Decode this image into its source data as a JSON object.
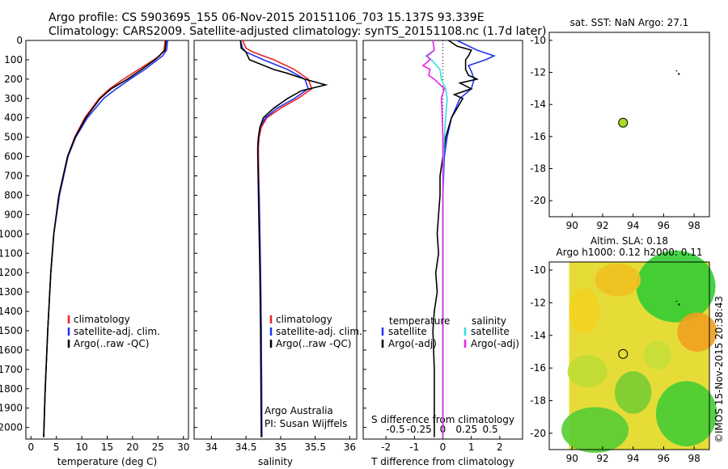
{
  "title": {
    "line1": "Argo profile: CS 5903695_155 06-Nov-2015 20151106_703 15.137S 93.339E",
    "line2": "Climatology: CARS2009. Satellite-adjusted climatology: synTS_20151108.nc (1.7d later)"
  },
  "colors": {
    "climatology": "#ee2222",
    "satellite": "#2233ee",
    "argo": "#000000",
    "sat_salinity": "#33dddd",
    "argo_salinity": "#ee22ee",
    "dot": "#aadd22"
  },
  "chart_data": [
    {
      "type": "line",
      "id": "temperature",
      "xlabel": "temperature (deg C)",
      "xlim": [
        -1,
        31
      ],
      "ylim": [
        2060,
        0
      ],
      "xticks": [
        0,
        5,
        10,
        15,
        20,
        25,
        30
      ],
      "yticks": [
        0,
        100,
        200,
        300,
        400,
        500,
        600,
        700,
        800,
        900,
        1000,
        1100,
        1200,
        1300,
        1400,
        1500,
        1600,
        1700,
        1800,
        1900,
        2000
      ],
      "legend": [
        "climatology",
        "satellite-adj. clim.",
        "Argo(..raw -QC)"
      ],
      "series": [
        {
          "name": "climatology",
          "depth": [
            0,
            50,
            80,
            100,
            150,
            200,
            250,
            300,
            400,
            500,
            600,
            800,
            1000,
            1200,
            1500,
            1800,
            2050
          ],
          "values": [
            26.4,
            26.2,
            25.3,
            24.2,
            21.2,
            18.2,
            15.5,
            13.4,
            10.6,
            8.6,
            7.2,
            5.5,
            4.5,
            3.9,
            3.3,
            2.8,
            2.5
          ]
        },
        {
          "name": "satellite-adj. clim.",
          "depth": [
            0,
            50,
            80,
            100,
            150,
            200,
            250,
            300,
            400,
            500,
            600,
            800,
            1000,
            1200,
            1500,
            1800,
            2050
          ],
          "values": [
            26.9,
            26.7,
            25.9,
            24.9,
            22.4,
            19.5,
            16.8,
            14.3,
            11.1,
            8.8,
            7.3,
            5.6,
            4.5,
            3.9,
            3.3,
            2.8,
            2.5
          ]
        },
        {
          "name": "Argo(..raw -QC)",
          "depth": [
            0,
            50,
            70,
            100,
            150,
            200,
            250,
            300,
            400,
            500,
            600,
            800,
            1000,
            1200,
            1500,
            1800,
            2050
          ],
          "values": [
            26.6,
            26.4,
            25.6,
            24.4,
            21.8,
            19.0,
            15.8,
            13.6,
            10.8,
            8.7,
            7.2,
            5.5,
            4.5,
            3.9,
            3.3,
            2.8,
            2.5
          ]
        }
      ]
    },
    {
      "type": "line",
      "id": "salinity",
      "xlabel": "salinity",
      "xlim": [
        33.75,
        36.1
      ],
      "ylim": [
        2060,
        0
      ],
      "xticks": [
        34,
        34.5,
        35,
        35.5,
        36
      ],
      "legend": [
        "climatology",
        "satellite-adj. clim.",
        "Argo(..raw -QC)"
      ],
      "series": [
        {
          "name": "climatology",
          "depth": [
            0,
            40,
            60,
            100,
            150,
            200,
            250,
            300,
            350,
            400,
            450,
            500,
            550,
            600,
            800,
            1000,
            1200,
            1500,
            2050
          ],
          "values": [
            34.45,
            34.5,
            34.6,
            34.9,
            35.2,
            35.4,
            35.45,
            35.25,
            35.0,
            34.8,
            34.72,
            34.69,
            34.68,
            34.68,
            34.69,
            34.7,
            34.71,
            34.72,
            34.73
          ]
        },
        {
          "name": "satellite-adj. clim.",
          "depth": [
            0,
            40,
            60,
            100,
            150,
            200,
            250,
            300,
            350,
            400,
            450,
            500,
            550,
            600,
            800,
            1000,
            1200,
            1500,
            2050
          ],
          "values": [
            34.42,
            34.45,
            34.5,
            34.75,
            35.1,
            35.35,
            35.4,
            35.2,
            34.95,
            34.78,
            34.7,
            34.68,
            34.67,
            34.67,
            34.69,
            34.7,
            34.71,
            34.72,
            34.73
          ]
        },
        {
          "name": "Argo(..raw -QC)",
          "depth": [
            0,
            40,
            60,
            100,
            150,
            170,
            200,
            230,
            260,
            300,
            350,
            400,
            450,
            500,
            550,
            600,
            800,
            1000,
            1200,
            1500,
            2050
          ],
          "values": [
            34.42,
            34.43,
            34.5,
            34.55,
            34.9,
            35.1,
            35.35,
            35.65,
            35.3,
            35.1,
            34.9,
            34.75,
            34.7,
            34.68,
            34.67,
            34.67,
            34.68,
            34.69,
            34.7,
            34.71,
            34.72
          ]
        }
      ],
      "annotation": [
        "Argo Australia",
        "PI: Susan Wijffels"
      ]
    },
    {
      "type": "line",
      "id": "difference",
      "xlabel": "T difference from climatology",
      "xlabel_top": "S difference from climatology",
      "xlim": [
        -2.8,
        2.8
      ],
      "ylim": [
        2060,
        0
      ],
      "xticks": [
        -2,
        -1,
        0,
        1,
        2
      ],
      "xticks_top": [
        "-0.5",
        "-0.25",
        "0",
        "0.25",
        "0.5"
      ],
      "legend_headers": [
        "temperature",
        "salinity"
      ],
      "legend": [
        "satellite",
        "Argo(-adj)",
        "satellite",
        "Argo(-adj)"
      ],
      "series": [
        {
          "name": "temperature satellite",
          "depth": [
            0,
            50,
            80,
            100,
            130,
            160,
            200,
            250,
            300,
            400,
            500,
            600,
            800,
            1000,
            1500,
            2050
          ],
          "values": [
            0.5,
            1.2,
            1.8,
            1.5,
            0.9,
            1.0,
            1.1,
            1.0,
            0.6,
            0.3,
            0.15,
            0.05,
            0,
            0,
            0,
            0
          ]
        },
        {
          "name": "temperature Argo(-adj)",
          "depth": [
            0,
            30,
            50,
            80,
            100,
            150,
            180,
            200,
            220,
            250,
            280,
            300,
            400,
            500,
            600,
            700,
            800,
            900,
            1000,
            1100,
            1200,
            1300,
            1400,
            1500,
            1700,
            2050
          ],
          "values": [
            0.2,
            0.5,
            1.0,
            0.9,
            0.8,
            0.8,
            0.9,
            1.2,
            0.6,
            1.0,
            0.4,
            0.7,
            0.3,
            0.1,
            0,
            -0.1,
            -0.1,
            -0.15,
            -0.2,
            -0.15,
            -0.25,
            -0.2,
            -0.3,
            -0.35,
            -0.3,
            -0.3
          ]
        },
        {
          "name": "salinity satellite",
          "depth": [
            0,
            50,
            80,
            100,
            150,
            200,
            250,
            300,
            400,
            500,
            600,
            800,
            1000,
            2050
          ],
          "values": [
            -0.35,
            -0.3,
            -0.6,
            -0.4,
            -0.1,
            -0.05,
            0.1,
            0.15,
            0.1,
            0.05,
            0.02,
            0,
            0,
            0
          ]
        },
        {
          "name": "salinity Argo(-adj)",
          "depth": [
            0,
            50,
            80,
            100,
            130,
            150,
            180,
            200,
            250,
            300,
            400,
            500,
            600,
            800,
            1000,
            2050
          ],
          "values": [
            -0.35,
            -0.3,
            -0.55,
            -0.45,
            -0.7,
            -0.45,
            -0.5,
            -0.3,
            0.05,
            -0.05,
            -0.02,
            0,
            0,
            0,
            0,
            0
          ]
        }
      ]
    }
  ],
  "map_top": {
    "title": "sat. SST: NaN Argo: 27.1",
    "xticks": [
      "90",
      "92",
      "94",
      "96",
      "98"
    ],
    "yticks": [
      "-10",
      "-12",
      "-14",
      "-16",
      "-18",
      "-20"
    ],
    "xlim": [
      88.5,
      99
    ],
    "ylim": [
      -21,
      -9.5
    ],
    "float_lon": 93.339,
    "float_lat": -15.137
  },
  "map_bottom": {
    "title_line1": "Altim. SLA: 0.18",
    "title_line2": "Argo h1000: 0.12 h2000: 0.11",
    "xticks": [
      "90",
      "92",
      "94",
      "96",
      "98"
    ],
    "yticks": [
      "-10",
      "-12",
      "-14",
      "-16",
      "-18",
      "-20"
    ],
    "xlim": [
      88.5,
      99
    ],
    "ylim": [
      -21,
      -9.5
    ],
    "float_lon": 93.339,
    "float_lat": -15.137
  },
  "credit": "©IMOS 15-Nov-2015 20:38:43"
}
